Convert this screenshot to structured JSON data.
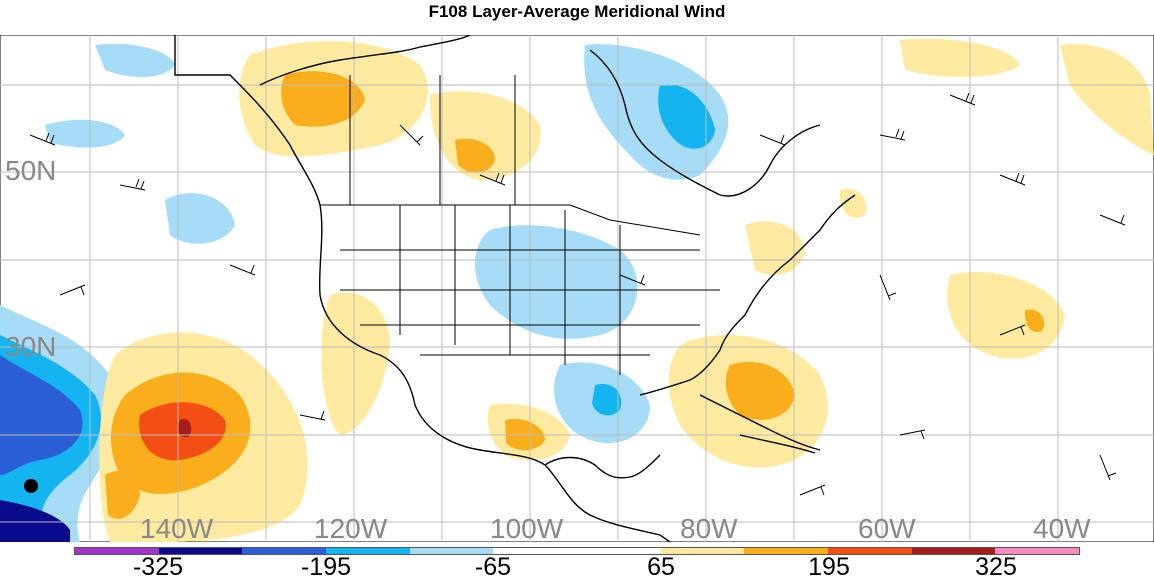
{
  "title": "F108 Layer-Average Meridional Wind",
  "lat_labels": [
    "50N",
    "30N"
  ],
  "lon_labels": [
    "140W",
    "120W",
    "100W",
    "80W",
    "60W",
    "40W"
  ],
  "colorbar": {
    "colors": [
      "#a033c8",
      "#0a0a8c",
      "#2b5fd6",
      "#14b4f0",
      "#a7dcf7",
      "#ffffff",
      "#ffffff",
      "#ffeaa0",
      "#fbae1c",
      "#f34f14",
      "#a51e1e",
      "#f48cbf"
    ],
    "labels": [
      "-325",
      "-195",
      "-65",
      "65",
      "195",
      "325"
    ]
  },
  "legend_colors": {
    "land": "#ffffff",
    "water": "#ffffff",
    "coast": "#000000",
    "grid": "#bbbbbb"
  }
}
